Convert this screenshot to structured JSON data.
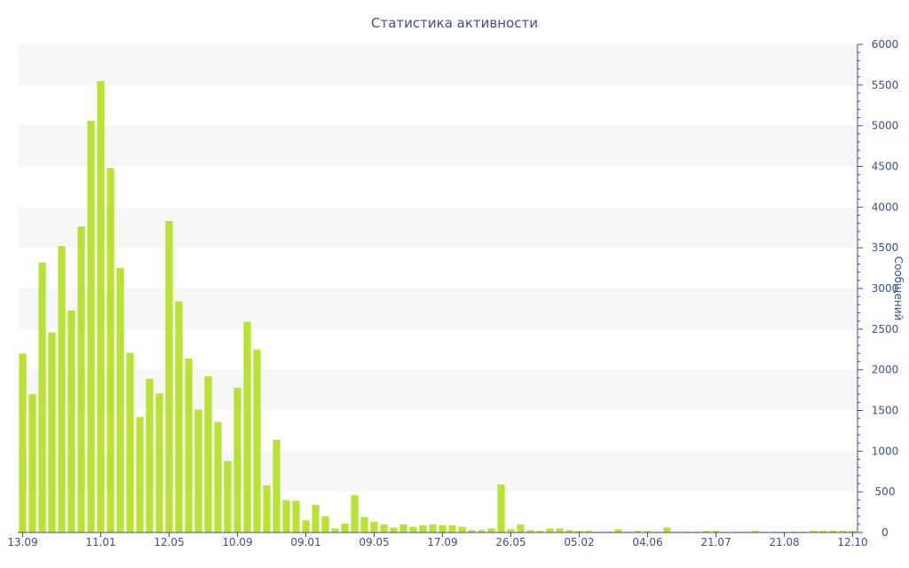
{
  "chart_data": {
    "type": "bar",
    "title": "Статистика активности",
    "ylabel": "Сообщений",
    "xlabel": "",
    "ylim": [
      0,
      6000
    ],
    "yticks": [
      0,
      500,
      1000,
      1500,
      2000,
      2500,
      3000,
      3500,
      4000,
      4500,
      5000,
      5500,
      6000
    ],
    "xtick_labels": [
      {
        "index": 0,
        "label": "13.09"
      },
      {
        "index": 8,
        "label": "11.01"
      },
      {
        "index": 15,
        "label": "12.05"
      },
      {
        "index": 22,
        "label": "10.09"
      },
      {
        "index": 29,
        "label": "09.01"
      },
      {
        "index": 36,
        "label": "09.05"
      },
      {
        "index": 43,
        "label": "17.09"
      },
      {
        "index": 50,
        "label": "26.05"
      },
      {
        "index": 57,
        "label": "05.02"
      },
      {
        "index": 64,
        "label": "04.06"
      },
      {
        "index": 71,
        "label": "21.07"
      },
      {
        "index": 78,
        "label": "21.08"
      },
      {
        "index": 85,
        "label": "12.10"
      }
    ],
    "values": [
      2200,
      1700,
      3320,
      2460,
      3520,
      2730,
      3760,
      5060,
      5550,
      4480,
      3250,
      2210,
      1420,
      1890,
      1710,
      3830,
      2840,
      2140,
      1510,
      1920,
      1360,
      880,
      1780,
      2590,
      2250,
      580,
      1140,
      400,
      390,
      150,
      340,
      200,
      50,
      110,
      460,
      190,
      130,
      100,
      60,
      100,
      70,
      90,
      100,
      90,
      90,
      70,
      30,
      30,
      50,
      590,
      40,
      100,
      30,
      20,
      50,
      50,
      30,
      20,
      20,
      10,
      10,
      40,
      10,
      20,
      20,
      10,
      60,
      10,
      10,
      10,
      20,
      20,
      10,
      10,
      10,
      20,
      10,
      10,
      10,
      10,
      10,
      20,
      20,
      20,
      20,
      20
    ],
    "colors": {
      "bar": "#b8e234",
      "text": "#3d4f8e",
      "band": "#f7f7f7"
    },
    "grid": "alternating horizontal bands",
    "y_axis_position": "right"
  }
}
